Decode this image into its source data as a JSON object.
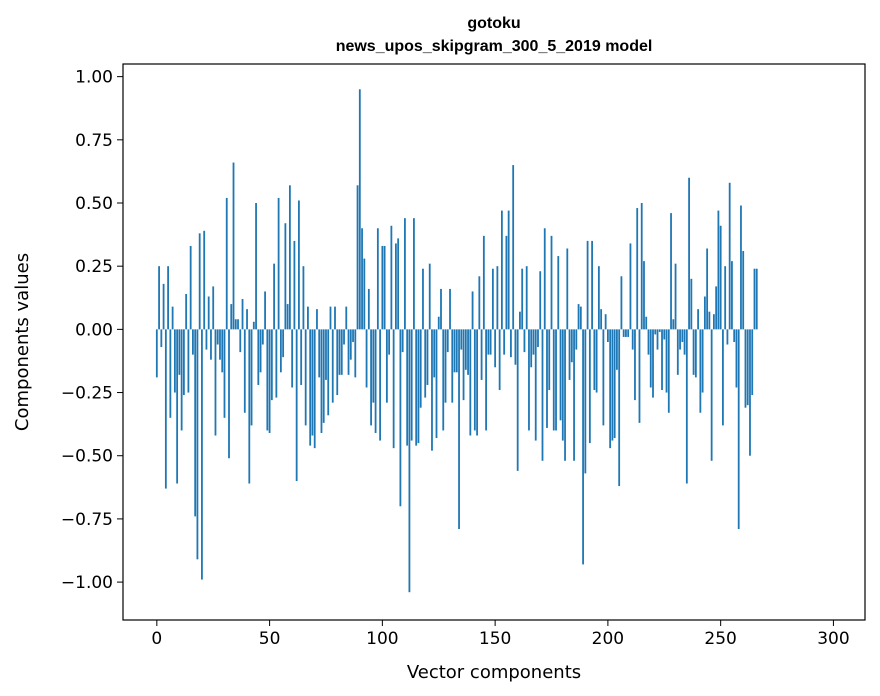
{
  "chart_data": {
    "type": "bar",
    "title": "gotoku",
    "subtitle": "news_upos_skipgram_300_5_2019 model",
    "xlabel": "Vector components",
    "ylabel": "Components values",
    "xlim": [
      -15,
      314
    ],
    "ylim": [
      -1.15,
      1.05
    ],
    "xticks": [
      0,
      50,
      100,
      150,
      200,
      250,
      300
    ],
    "yticks": [
      1.0,
      0.75,
      0.5,
      0.25,
      0.0,
      -0.25,
      -0.5,
      -0.75,
      -1.0
    ],
    "xtick_labels": [
      "0",
      "50",
      "100",
      "150",
      "200",
      "250",
      "300"
    ],
    "ytick_labels": [
      "1.00",
      "0.75",
      "0.50",
      "0.25",
      "0.00",
      "−0.25",
      "−0.50",
      "−0.75",
      "−1.00"
    ],
    "bar_color": "#1f77b4",
    "grid": false,
    "values": [
      -0.19,
      0.25,
      -0.07,
      0.18,
      -0.63,
      0.25,
      -0.35,
      0.09,
      -0.25,
      -0.61,
      -0.18,
      -0.4,
      -0.26,
      0.14,
      -0.25,
      0.33,
      -0.1,
      -0.74,
      -0.91,
      0.38,
      -0.99,
      0.39,
      -0.08,
      0.13,
      -0.12,
      0.17,
      -0.42,
      -0.06,
      -0.12,
      -0.17,
      -0.35,
      0.52,
      -0.51,
      0.1,
      0.66,
      0.04,
      0.04,
      -0.09,
      0.12,
      -0.33,
      0.08,
      -0.61,
      -0.38,
      0.03,
      0.5,
      -0.22,
      -0.17,
      -0.06,
      0.15,
      -0.4,
      -0.41,
      -0.28,
      0.26,
      -0.27,
      0.52,
      -0.17,
      -0.11,
      0.42,
      0.1,
      0.57,
      -0.23,
      0.35,
      -0.6,
      0.51,
      -0.22,
      0.25,
      -0.38,
      0.09,
      -0.46,
      -0.42,
      -0.47,
      0.08,
      -0.19,
      -0.41,
      -0.37,
      -0.2,
      -0.34,
      0.09,
      -0.29,
      0.09,
      -0.26,
      -0.18,
      -0.18,
      -0.06,
      0.09,
      -0.18,
      -0.12,
      -0.05,
      -0.19,
      0.57,
      0.95,
      0.4,
      0.28,
      -0.23,
      0.16,
      -0.38,
      -0.29,
      -0.41,
      0.4,
      -0.44,
      0.33,
      0.33,
      -0.29,
      -0.1,
      0.41,
      -0.47,
      0.34,
      0.36,
      -0.7,
      -0.09,
      0.44,
      -0.46,
      -1.04,
      -0.44,
      0.44,
      -0.46,
      -0.45,
      -0.31,
      0.24,
      -0.27,
      -0.22,
      0.26,
      -0.48,
      -0.19,
      -0.43,
      0.05,
      0.16,
      -0.4,
      -0.29,
      -0.09,
      0.16,
      -0.29,
      -0.17,
      -0.17,
      -0.79,
      -0.08,
      -0.28,
      -0.16,
      -0.18,
      -0.42,
      0.15,
      -0.4,
      -0.42,
      0.21,
      -0.2,
      0.37,
      -0.4,
      -0.1,
      -0.1,
      0.24,
      -0.15,
      0.25,
      -0.24,
      0.47,
      -0.1,
      0.37,
      0.47,
      -0.11,
      0.65,
      -0.14,
      -0.56,
      0.07,
      0.24,
      -0.09,
      0.25,
      -0.4,
      -0.15,
      -0.1,
      -0.44,
      -0.07,
      0.23,
      -0.52,
      0.4,
      -0.39,
      -0.24,
      0.37,
      -0.4,
      -0.4,
      0.29,
      -0.36,
      -0.44,
      -0.52,
      0.32,
      -0.2,
      -0.13,
      -0.52,
      -0.08,
      0.1,
      0.09,
      -0.93,
      -0.57,
      0.35,
      -0.45,
      0.35,
      -0.24,
      -0.25,
      0.25,
      0.08,
      -0.38,
      0.06,
      -0.05,
      -0.47,
      -0.44,
      -0.43,
      -0.16,
      -0.62,
      0.21,
      -0.03,
      -0.03,
      -0.03,
      0.34,
      -0.08,
      -0.28,
      0.48,
      -0.37,
      0.5,
      0.27,
      0.05,
      -0.1,
      -0.23,
      -0.27,
      -0.02,
      -0.08,
      -0.01,
      -0.24,
      -0.04,
      -0.25,
      -0.33,
      0.46,
      0.04,
      0.26,
      -0.18,
      -0.08,
      -0.05,
      -0.1,
      -0.61,
      0.6,
      0.2,
      -0.18,
      -0.19,
      0.08,
      -0.33,
      -0.25,
      0.13,
      0.32,
      0.07,
      -0.52,
      0.06,
      0.17,
      0.47,
      0.41,
      -0.38,
      0.25,
      -0.06,
      0.58,
      0.27,
      -0.05,
      -0.23,
      -0.79,
      0.49,
      0.31,
      -0.31,
      -0.3,
      -0.5,
      -0.26,
      0.24,
      0.24
    ]
  }
}
